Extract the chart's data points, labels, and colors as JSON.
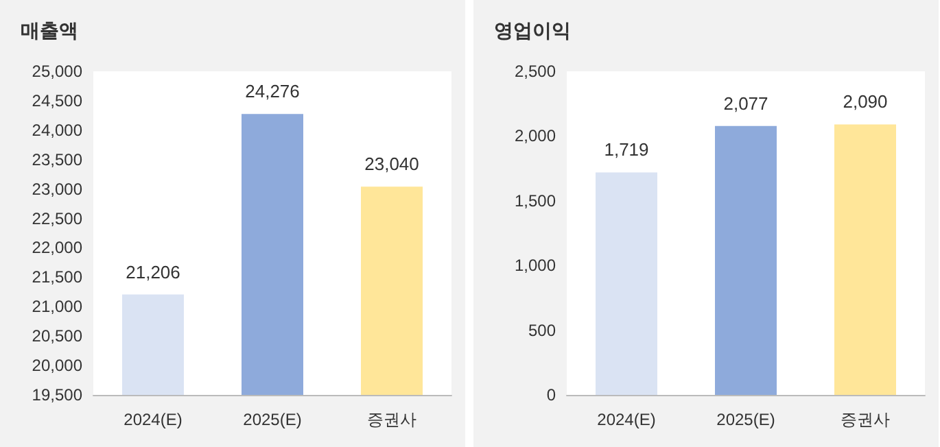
{
  "chart_data": [
    {
      "type": "bar",
      "title": "매출액",
      "categories": [
        "2024(E)",
        "2025(E)",
        "증권사"
      ],
      "values": [
        21206,
        24276,
        23040
      ],
      "colors": [
        "#dae3f3",
        "#8eaadb",
        "#ffe699"
      ],
      "ylim": [
        19500,
        25000
      ],
      "yticks": [
        {
          "value": 19500,
          "label": "19,500"
        },
        {
          "value": 20000,
          "label": "20,000"
        },
        {
          "value": 20500,
          "label": "20,500"
        },
        {
          "value": 21000,
          "label": "21,000"
        },
        {
          "value": 21500,
          "label": "21,500"
        },
        {
          "value": 22000,
          "label": "22,000"
        },
        {
          "value": 22500,
          "label": "22,500"
        },
        {
          "value": 23000,
          "label": "23,000"
        },
        {
          "value": 23500,
          "label": "23,500"
        },
        {
          "value": 24000,
          "label": "24,000"
        },
        {
          "value": 24500,
          "label": "24,500"
        },
        {
          "value": 25000,
          "label": "25,000"
        }
      ],
      "value_labels": [
        "21,206",
        "24,276",
        "23,040"
      ],
      "grid": false
    },
    {
      "type": "bar",
      "title": "영업이익",
      "categories": [
        "2024(E)",
        "2025(E)",
        "증권사"
      ],
      "values": [
        1719,
        2077,
        2090
      ],
      "colors": [
        "#dae3f3",
        "#8eaadb",
        "#ffe699"
      ],
      "ylim": [
        0,
        2500
      ],
      "yticks": [
        0,
        {
          "value": 500,
          "label": "500"
        },
        {
          "value": 1000,
          "label": "1,000"
        },
        {
          "value": 1500,
          "label": "1,500"
        },
        {
          "value": 2000,
          "label": "2,000"
        },
        {
          "value": 2500,
          "label": "2,500"
        }
      ],
      "value_labels": [
        "1,719",
        "2,077",
        "2,090"
      ],
      "grid": false
    }
  ]
}
